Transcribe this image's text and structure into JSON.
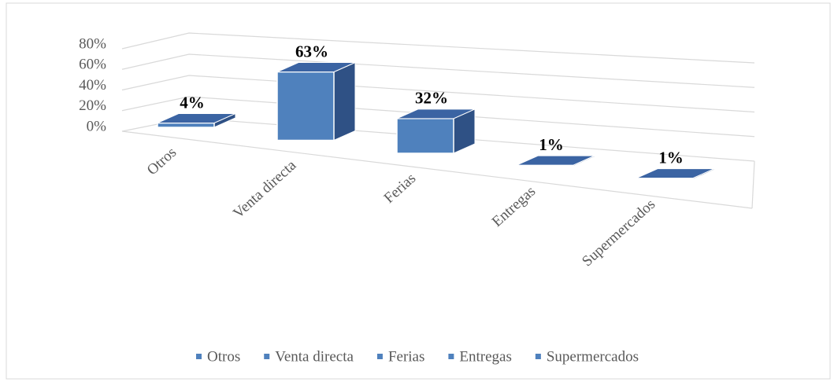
{
  "chart_data": {
    "type": "bar3d",
    "categories": [
      "Otros",
      "Venta directa",
      "Ferias",
      "Entregas",
      "Supermercados"
    ],
    "values": [
      4,
      63,
      32,
      1,
      1
    ],
    "value_labels": [
      "4%",
      "63%",
      "32%",
      "1%",
      "1%"
    ],
    "color": "#4f81bd",
    "ylim": [
      0,
      80
    ],
    "yticks": [
      {
        "value": 0,
        "label": "0%"
      },
      {
        "value": 20,
        "label": "20%"
      },
      {
        "value": 40,
        "label": "40%"
      },
      {
        "value": 60,
        "label": "60%"
      },
      {
        "value": 80,
        "label": "80%"
      }
    ],
    "grid": true,
    "legend": "bottom"
  }
}
